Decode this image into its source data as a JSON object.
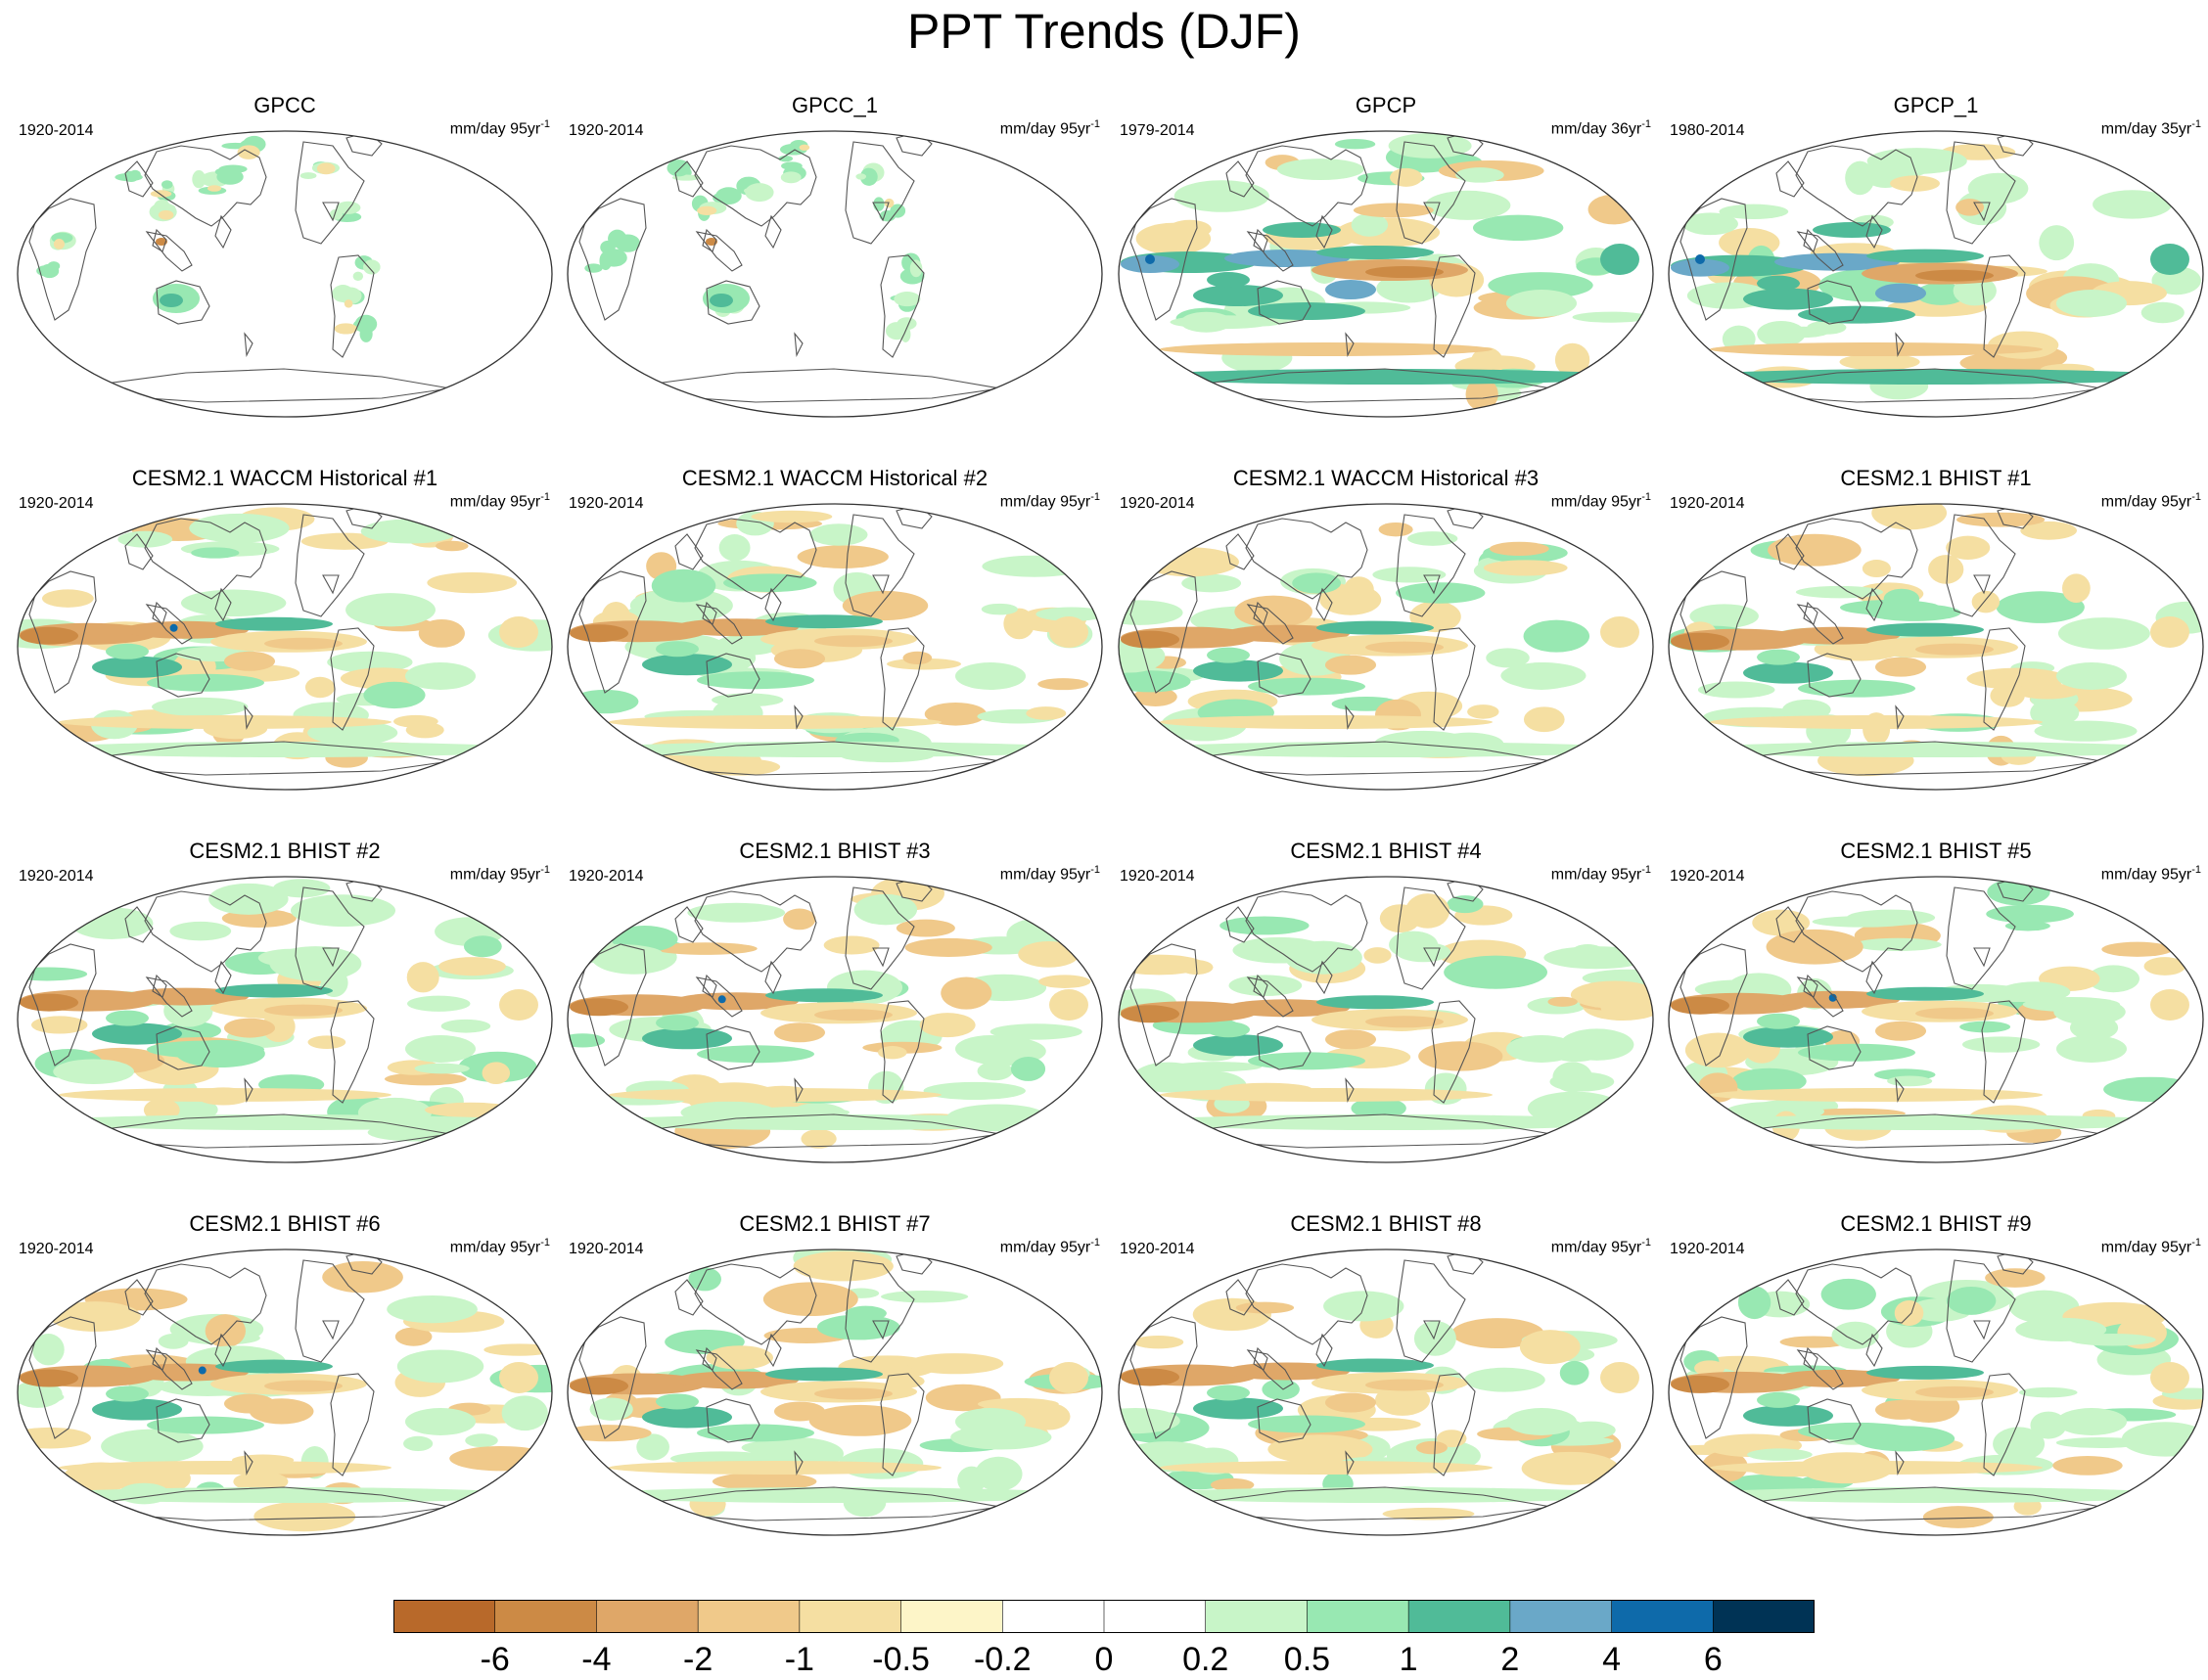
{
  "chart_data": {
    "type": "heatmap",
    "title": "PPT Trends (DJF)",
    "projection": "Robinson (Pacific-centred)",
    "panels": [
      {
        "title": "GPCC",
        "period": "1920-2014",
        "units": "mm/day 95yr",
        "units_sup": "-1",
        "pattern": "land_only"
      },
      {
        "title": "GPCC_1",
        "period": "1920-2014",
        "units": "mm/day 95yr",
        "units_sup": "-1",
        "pattern": "land_only"
      },
      {
        "title": "GPCP",
        "period": "1979-2014",
        "units": "mm/day 36yr",
        "units_sup": "-1",
        "pattern": "strong_obs"
      },
      {
        "title": "GPCP_1",
        "period": "1980-2014",
        "units": "mm/day 35yr",
        "units_sup": "-1",
        "pattern": "strong_obs"
      },
      {
        "title": "CESM2.1 WACCM Historical #1",
        "period": "1920-2014",
        "units": "mm/day 95yr",
        "units_sup": "-1",
        "pattern": "model"
      },
      {
        "title": "CESM2.1 WACCM Historical #2",
        "period": "1920-2014",
        "units": "mm/day 95yr",
        "units_sup": "-1",
        "pattern": "model"
      },
      {
        "title": "CESM2.1 WACCM Historical #3",
        "period": "1920-2014",
        "units": "mm/day 95yr",
        "units_sup": "-1",
        "pattern": "model"
      },
      {
        "title": "CESM2.1 BHIST #1",
        "period": "1920-2014",
        "units": "mm/day 95yr",
        "units_sup": "-1",
        "pattern": "model"
      },
      {
        "title": "CESM2.1 BHIST #2",
        "period": "1920-2014",
        "units": "mm/day 95yr",
        "units_sup": "-1",
        "pattern": "model"
      },
      {
        "title": "CESM2.1 BHIST #3",
        "period": "1920-2014",
        "units": "mm/day 95yr",
        "units_sup": "-1",
        "pattern": "model"
      },
      {
        "title": "CESM2.1 BHIST #4",
        "period": "1920-2014",
        "units": "mm/day 95yr",
        "units_sup": "-1",
        "pattern": "model"
      },
      {
        "title": "CESM2.1 BHIST #5",
        "period": "1920-2014",
        "units": "mm/day 95yr",
        "units_sup": "-1",
        "pattern": "model"
      },
      {
        "title": "CESM2.1 BHIST #6",
        "period": "1920-2014",
        "units": "mm/day 95yr",
        "units_sup": "-1",
        "pattern": "model"
      },
      {
        "title": "CESM2.1 BHIST #7",
        "period": "1920-2014",
        "units": "mm/day 95yr",
        "units_sup": "-1",
        "pattern": "model"
      },
      {
        "title": "CESM2.1 BHIST #8",
        "period": "1920-2014",
        "units": "mm/day 95yr",
        "units_sup": "-1",
        "pattern": "model"
      },
      {
        "title": "CESM2.1 BHIST #9",
        "period": "1920-2014",
        "units": "mm/day 95yr",
        "units_sup": "-1",
        "pattern": "model"
      }
    ],
    "colorbar": {
      "levels": [
        "-6",
        "-4",
        "-2",
        "-1",
        "-0.5",
        "-0.2",
        "0",
        "0.2",
        "0.5",
        "1",
        "2",
        "4",
        "6"
      ],
      "colors": [
        "#b8692a",
        "#cc8a45",
        "#dfa768",
        "#f0c98a",
        "#f5dfa2",
        "#fdf5c8",
        "#ffffff",
        "#ffffff",
        "#c8f5c8",
        "#98e8b2",
        "#50bb98",
        "#6aa8c8",
        "#0e6aaa",
        "#003355"
      ]
    }
  }
}
